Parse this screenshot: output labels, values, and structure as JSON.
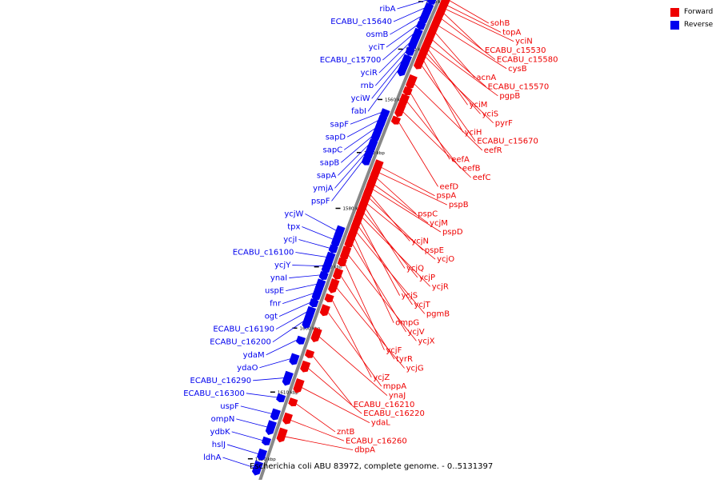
{
  "colors": {
    "forward": "#ee0000",
    "reverse": "#0000ee",
    "backbone": "#888888",
    "tick": "#000000"
  },
  "legend": [
    {
      "label": "Forward",
      "strand": "forward"
    },
    {
      "label": "Reverse",
      "strand": "reverse"
    }
  ],
  "caption": "Escherichia coli ABU 83972, complete genome. - 0..5131397",
  "scale": {
    "start_kbp": 1540,
    "end_kbp": 1620,
    "step_kbp": 10,
    "unit": "kbp"
  },
  "reverse_genes": [
    {
      "label": "ribA",
      "kbp": 1539.0
    },
    {
      "label": "ECABU_c15640",
      "kbp": 1540.8
    },
    {
      "label": "osmB",
      "kbp": 1542.6
    },
    {
      "label": "yciT",
      "kbp": 1544.4
    },
    {
      "label": "ECABU_c15700",
      "kbp": 1546.2
    },
    {
      "label": "yciR",
      "kbp": 1548.0
    },
    {
      "label": "rnb",
      "kbp": 1549.8
    },
    {
      "label": "yciW",
      "kbp": 1551.6
    },
    {
      "label": "fabI",
      "kbp": 1553.4
    },
    {
      "label": "sapF",
      "kbp": 1562.0
    },
    {
      "label": "sapD",
      "kbp": 1563.5
    },
    {
      "label": "sapC",
      "kbp": 1565.0
    },
    {
      "label": "sapB",
      "kbp": 1566.5
    },
    {
      "label": "sapA",
      "kbp": 1568.0
    },
    {
      "label": "ymjA",
      "kbp": 1569.5
    },
    {
      "label": "pspF",
      "kbp": 1571.0
    },
    {
      "label": "ycjW",
      "kbp": 1583.5
    },
    {
      "label": "tpx",
      "kbp": 1585.0
    },
    {
      "label": "ycjI",
      "kbp": 1586.5
    },
    {
      "label": "ECABU_c16100",
      "kbp": 1588.0
    },
    {
      "label": "ycjY",
      "kbp": 1589.5
    },
    {
      "label": "ynaI",
      "kbp": 1591.0
    },
    {
      "label": "uspE",
      "kbp": 1592.5
    },
    {
      "label": "fnr",
      "kbp": 1594.0
    },
    {
      "label": "ogt",
      "kbp": 1595.5
    },
    {
      "label": "ECABU_c16190",
      "kbp": 1597.0
    },
    {
      "label": "ECABU_c16200",
      "kbp": 1598.5
    },
    {
      "label": "ydaM",
      "kbp": 1601.5
    },
    {
      "label": "ydaO",
      "kbp": 1604.5
    },
    {
      "label": "ECABU_c16290",
      "kbp": 1607.5
    },
    {
      "label": "ECABU_c16300",
      "kbp": 1610.5
    },
    {
      "label": "uspF",
      "kbp": 1613.0
    },
    {
      "label": "ompN",
      "kbp": 1615.0
    },
    {
      "label": "ydbK",
      "kbp": 1617.0
    },
    {
      "label": "hslJ",
      "kbp": 1619.0
    },
    {
      "label": "ldhA",
      "kbp": 1621.0
    }
  ],
  "forward_genes": [
    {
      "label": "sohB",
      "kbp": 1537.5
    },
    {
      "label": "topA",
      "kbp": 1538.6
    },
    {
      "label": "yciN",
      "kbp": 1539.4
    },
    {
      "label": "ECABU_c15530",
      "kbp": 1540.3
    },
    {
      "label": "ECABU_c15580",
      "kbp": 1541.5
    },
    {
      "label": "cysB",
      "kbp": 1543.0
    },
    {
      "label": "acnA",
      "kbp": 1544.5
    },
    {
      "label": "ECABU_c15570",
      "kbp": 1546.0
    },
    {
      "label": "pgpB",
      "kbp": 1547.3
    },
    {
      "label": "yciM",
      "kbp": 1548.0
    },
    {
      "label": "yciS",
      "kbp": 1548.8
    },
    {
      "label": "pyrF",
      "kbp": 1549.5
    },
    {
      "label": "yciH",
      "kbp": 1550.3
    },
    {
      "label": "ECABU_c15670",
      "kbp": 1551.3
    },
    {
      "label": "eefR",
      "kbp": 1555.0
    },
    {
      "label": "eefA",
      "kbp": 1556.8
    },
    {
      "label": "eefB",
      "kbp": 1558.5
    },
    {
      "label": "eefC",
      "kbp": 1560.5
    },
    {
      "label": "eefD",
      "kbp": 1562.5
    },
    {
      "label": "pspA",
      "kbp": 1571.0
    },
    {
      "label": "pspB",
      "kbp": 1572.0
    },
    {
      "label": "pspC",
      "kbp": 1573.0
    },
    {
      "label": "ycjM",
      "kbp": 1574.2
    },
    {
      "label": "pspD",
      "kbp": 1575.0
    },
    {
      "label": "ycjN",
      "kbp": 1576.0
    },
    {
      "label": "pspE",
      "kbp": 1576.6
    },
    {
      "label": "ycjO",
      "kbp": 1577.6
    },
    {
      "label": "ycjQ",
      "kbp": 1578.4
    },
    {
      "label": "ycjP",
      "kbp": 1579.2
    },
    {
      "label": "ycjR",
      "kbp": 1580.0
    },
    {
      "label": "ycjS",
      "kbp": 1580.8
    },
    {
      "label": "ycjT",
      "kbp": 1581.6
    },
    {
      "label": "pgmB",
      "kbp": 1582.6
    },
    {
      "label": "ompG",
      "kbp": 1583.6
    },
    {
      "label": "ycjV",
      "kbp": 1584.6
    },
    {
      "label": "ycjX",
      "kbp": 1586.5
    },
    {
      "label": "ycjF",
      "kbp": 1588.0
    },
    {
      "label": "tyrR",
      "kbp": 1590.0
    },
    {
      "label": "ycjG",
      "kbp": 1592.0
    },
    {
      "label": "ycjZ",
      "kbp": 1594.0
    },
    {
      "label": "mppA",
      "kbp": 1596.0
    },
    {
      "label": "ynaJ",
      "kbp": 1600.0
    },
    {
      "label": "ECABU_c16210",
      "kbp": 1603.0
    },
    {
      "label": "ECABU_c16220",
      "kbp": 1605.0
    },
    {
      "label": "ydaL",
      "kbp": 1608.0
    },
    {
      "label": "zntB",
      "kbp": 1610.5
    },
    {
      "label": "ECABU_c16260",
      "kbp": 1613.0
    },
    {
      "label": "dbpA",
      "kbp": 1615.5
    }
  ]
}
